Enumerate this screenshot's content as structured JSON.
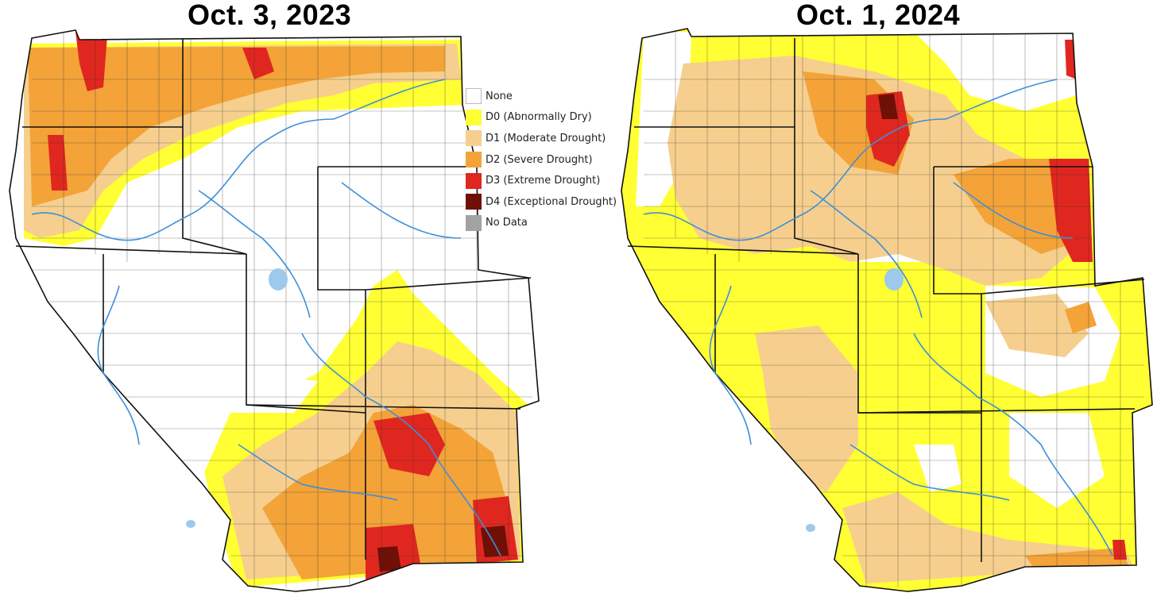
{
  "titles": {
    "left": "Oct. 3, 2023",
    "right": "Oct. 1, 2024"
  },
  "legend": [
    {
      "key": "none",
      "label": "None",
      "color": "#ffffff",
      "border": "#bbbbbb"
    },
    {
      "key": "d0",
      "label": "D0 (Abnormally Dry)",
      "color": "#ffff33",
      "border": "#ffff33"
    },
    {
      "key": "d1",
      "label": "D1 (Moderate Drought)",
      "color": "#f6cf8e",
      "border": "#f6cf8e"
    },
    {
      "key": "d2",
      "label": "D2 (Severe Drought)",
      "color": "#f3a338",
      "border": "#f3a338"
    },
    {
      "key": "d3",
      "label": "D3 (Extreme Drought)",
      "color": "#e0271f",
      "border": "#e0271f"
    },
    {
      "key": "d4",
      "label": "D4 (Exceptional Drought)",
      "color": "#6e1006",
      "border": "#6e1006"
    },
    {
      "key": "nodata",
      "label": "No Data",
      "color": "#a2a2a2",
      "border": "#a2a2a2"
    }
  ],
  "colors": {
    "river": "#3d8fd9",
    "lake": "#9cc9ec",
    "border": "#111111",
    "county": "#333333"
  }
}
